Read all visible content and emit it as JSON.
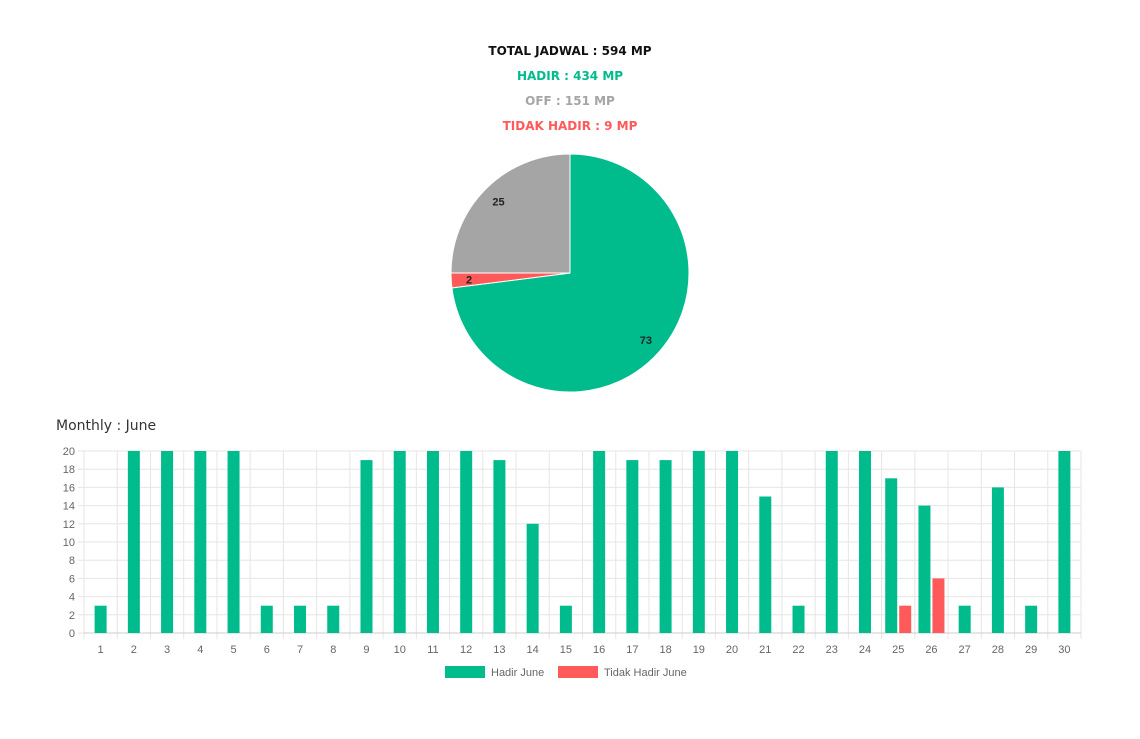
{
  "summary": {
    "total": "TOTAL JADWAL : 594 MP",
    "hadir": "HADIR : 434 MP",
    "off": "OFF : 151 MP",
    "tidak_hadir": "TIDAK HADIR : 9 MP"
  },
  "colors": {
    "hadir": "#00bc8c",
    "off": "#a5a5a5",
    "tidak_hadir": "#ff5a5a",
    "grid": "#e6e6e6",
    "axis_text": "#666666"
  },
  "monthly_title": "Monthly : June",
  "chart_data": [
    {
      "type": "pie",
      "labels": [
        "Hadir",
        "Tidak Hadir",
        "Off"
      ],
      "values": [
        73,
        2,
        25
      ],
      "colors": [
        "#00bc8c",
        "#ff5a5a",
        "#a5a5a5"
      ],
      "data_labels": [
        "73",
        "2",
        "25"
      ]
    },
    {
      "type": "bar",
      "title": "Monthly : June",
      "categories": [
        "1",
        "2",
        "3",
        "4",
        "5",
        "6",
        "7",
        "8",
        "9",
        "10",
        "11",
        "12",
        "13",
        "14",
        "15",
        "16",
        "17",
        "18",
        "19",
        "20",
        "21",
        "22",
        "23",
        "24",
        "25",
        "26",
        "27",
        "28",
        "29",
        "30"
      ],
      "series": [
        {
          "name": "Hadir June",
          "color": "#00bc8c",
          "values": [
            3,
            20,
            20,
            20,
            20,
            3,
            3,
            3,
            19,
            20,
            20,
            20,
            19,
            12,
            3,
            20,
            19,
            19,
            20,
            20,
            15,
            3,
            20,
            20,
            17,
            14,
            3,
            16,
            3,
            20
          ]
        },
        {
          "name": "Tidak Hadir June",
          "color": "#ff5a5a",
          "values": [
            0,
            0,
            0,
            0,
            0,
            0,
            0,
            0,
            0,
            0,
            0,
            0,
            0,
            0,
            0,
            0,
            0,
            0,
            0,
            0,
            0,
            0,
            0,
            0,
            3,
            6,
            0,
            0,
            0,
            0
          ]
        }
      ],
      "ylim": [
        0,
        20
      ],
      "yticks": [
        0,
        2,
        4,
        6,
        8,
        10,
        12,
        14,
        16,
        18,
        20
      ],
      "grid": true,
      "legend_position": "bottom"
    }
  ]
}
